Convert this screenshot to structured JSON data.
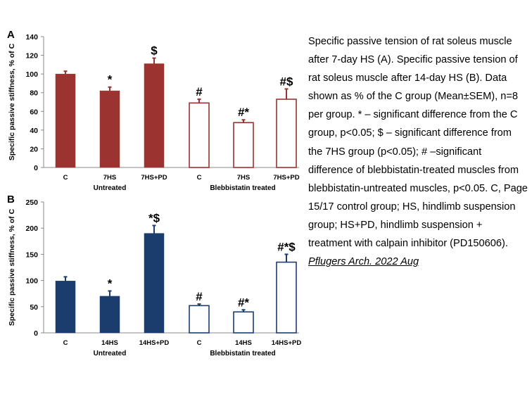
{
  "chart_data": [
    {
      "panel": "A",
      "type": "bar",
      "ylabel": "Specific passive stiffness, % of C",
      "ylim": [
        0,
        140
      ],
      "yticks": [
        0,
        20,
        40,
        60,
        80,
        100,
        120,
        140
      ],
      "grid": false,
      "categories": [
        "C",
        "7HS",
        "7HS+PD",
        "C",
        "7HS",
        "7HS+PD"
      ],
      "values": [
        100,
        82,
        111,
        69,
        48,
        73
      ],
      "errors": [
        3,
        4,
        6,
        4,
        3,
        11
      ],
      "annotations": [
        "",
        "*",
        "$",
        "#",
        "#*",
        "#$"
      ],
      "filled": [
        true,
        true,
        true,
        false,
        false,
        false
      ],
      "groups": [
        {
          "label": "Untreated",
          "indices": [
            0,
            1,
            2
          ]
        },
        {
          "label": "Blebbistatin treated",
          "indices": [
            3,
            4,
            5
          ]
        }
      ],
      "color": "#9b3430"
    },
    {
      "panel": "B",
      "type": "bar",
      "ylabel": "Specific passive stiffness, % of C",
      "ylim": [
        0,
        250
      ],
      "yticks": [
        0,
        50,
        100,
        150,
        200,
        250
      ],
      "grid": false,
      "categories": [
        "C",
        "14HS",
        "14HS+PD",
        "C",
        "14HS",
        "14HS+PD"
      ],
      "values": [
        99,
        70,
        190,
        52,
        40,
        135
      ],
      "errors": [
        8,
        10,
        15,
        3,
        4,
        15
      ],
      "annotations": [
        "",
        "*",
        "*$",
        "#",
        "#*",
        "#*$"
      ],
      "filled": [
        true,
        true,
        true,
        false,
        false,
        false
      ],
      "groups": [
        {
          "label": "Untreated",
          "indices": [
            0,
            1,
            2
          ]
        },
        {
          "label": "Blebbistatin treated",
          "indices": [
            3,
            4,
            5
          ]
        }
      ],
      "color": "#1b3d6e"
    }
  ],
  "caption": {
    "text": "Specific passive tension of rat soleus muscle after 7-day HS (A). Specific passive tension of rat soleus muscle after 14-day HS (B). Data shown as % of the C group (Mean±SEM), n=8 per group. * – significant difference from the C group, p<0.05; $ – significant difference from the 7HS group (p<0.05); # –significant difference of blebbistatin-treated muscles from blebbistatin-untreated muscles, p<0.05. C, Page 15/17 control group; HS, hindlimb suspension group; HS+PD, hindlimb suspension + treatment with calpain inhibitor (PD150606).",
    "source": "Pflugers Arch. 2022 Aug"
  }
}
